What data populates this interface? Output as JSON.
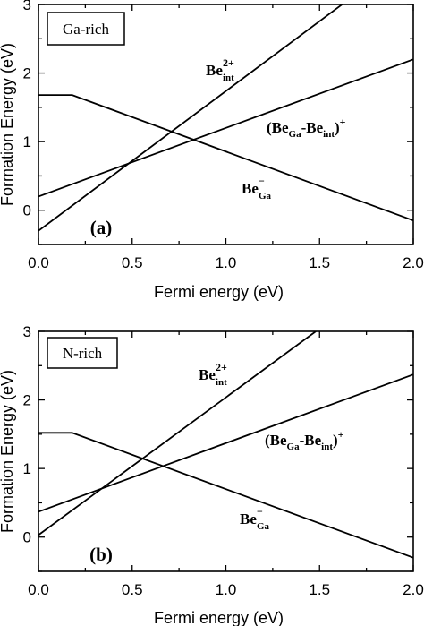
{
  "chart_data": [
    {
      "type": "line",
      "panel_label": "(a)",
      "condition_label": "Ga-rich",
      "xlabel": "Fermi energy (eV)",
      "ylabel": "Formation Energy (eV)",
      "xlim": [
        0.0,
        2.0
      ],
      "ylim": [
        -0.5,
        3.0
      ],
      "x_ticks": [
        "0.0",
        "0.5",
        "1.0",
        "1.5",
        "2.0"
      ],
      "y_ticks": [
        "0",
        "1",
        "2",
        "3"
      ],
      "series": [
        {
          "key": "be_int_2plus",
          "base": "Be",
          "sup": "2+",
          "sub": "int",
          "suffix_sup": "",
          "x": [
            0.0,
            1.62
          ],
          "y": [
            -0.3,
            3.0
          ]
        },
        {
          "key": "be_ga_minus",
          "base": "Be",
          "sup": "−",
          "sub": "Ga",
          "suffix_sup": "",
          "x": [
            0.0,
            0.18,
            2.0
          ],
          "y": [
            1.68,
            1.68,
            -0.15
          ]
        },
        {
          "key": "be_ga_be_int_plus",
          "base": "(Be",
          "sup": "",
          "sub": "Ga",
          "mid": "-Be",
          "sub2": "int",
          "close": ")",
          "suffix_sup": "+",
          "x": [
            0.0,
            2.0
          ],
          "y": [
            0.2,
            2.2
          ]
        }
      ]
    },
    {
      "type": "line",
      "panel_label": "(b)",
      "condition_label": "N-rich",
      "xlabel": "Fermi energy (eV)",
      "ylabel": "Formation Energy (eV)",
      "xlim": [
        0.0,
        2.0
      ],
      "ylim": [
        -0.5,
        3.0
      ],
      "x_ticks": [
        "0.0",
        "0.5",
        "1.0",
        "1.5",
        "2.0"
      ],
      "y_ticks": [
        "0",
        "1",
        "2",
        "3"
      ],
      "series": [
        {
          "key": "be_int_2plus",
          "base": "Be",
          "sup": "2+",
          "sub": "int",
          "suffix_sup": "",
          "x": [
            0.0,
            1.48
          ],
          "y": [
            0.03,
            3.0
          ]
        },
        {
          "key": "be_ga_minus",
          "base": "Be",
          "sup": "−",
          "sub": "Ga",
          "suffix_sup": "",
          "x": [
            0.0,
            0.18,
            2.0
          ],
          "y": [
            1.52,
            1.52,
            -0.3
          ]
        },
        {
          "key": "be_ga_be_int_plus",
          "base": "(Be",
          "sup": "",
          "sub": "Ga",
          "mid": "-Be",
          "sub2": "int",
          "close": ")",
          "suffix_sup": "+",
          "x": [
            0.0,
            2.0
          ],
          "y": [
            0.37,
            2.37
          ]
        }
      ]
    }
  ]
}
